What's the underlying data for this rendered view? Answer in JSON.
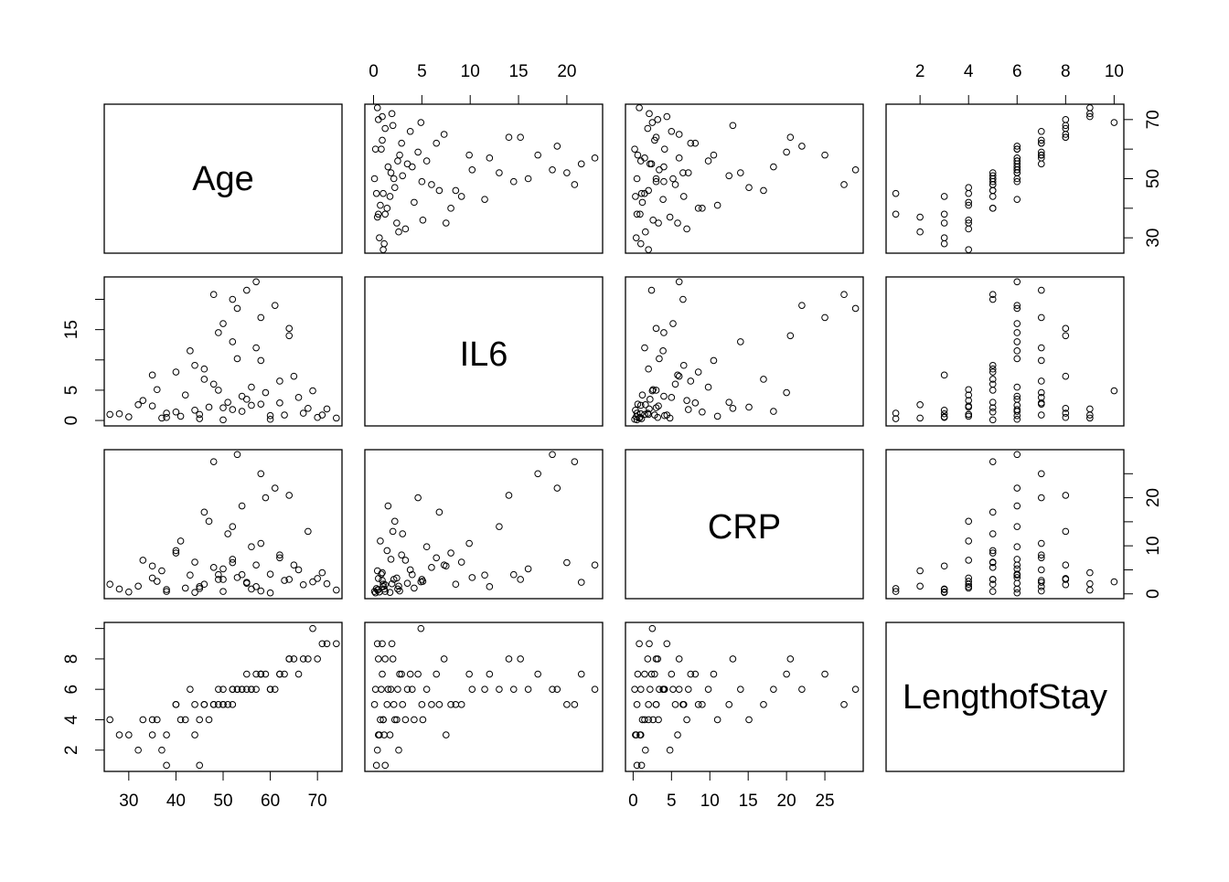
{
  "chart_data": {
    "type": "scatter",
    "subtype": "scatterplot-matrix",
    "variables": [
      "Age",
      "IL6",
      "CRP",
      "LengthofStay"
    ],
    "axes": {
      "Age": {
        "range": [
          24.8,
          75.2
        ],
        "ticks": [
          30,
          40,
          50,
          60,
          70
        ],
        "tick_labels": {
          "bottom": [
            "30",
            "40",
            "50",
            "60",
            "70"
          ],
          "right": [
            "30",
            "",
            "50",
            "",
            "70"
          ]
        }
      },
      "IL6": {
        "range": [
          -0.9,
          23.7
        ],
        "ticks": [
          0,
          5,
          10,
          15,
          20
        ],
        "tick_labels": {
          "top": [
            "0",
            "5",
            "10",
            "15",
            "20"
          ],
          "left": [
            "0",
            "5",
            "",
            "15",
            ""
          ]
        }
      },
      "CRP": {
        "range": [
          -1.0,
          30.0
        ],
        "ticks": [
          0,
          5,
          10,
          15,
          20,
          25
        ],
        "tick_labels": {
          "bottom": [
            "0",
            "5",
            "10",
            "15",
            "20",
            "25"
          ],
          "right": [
            "0",
            "",
            "10",
            "",
            "20",
            ""
          ]
        }
      },
      "LengthofStay": {
        "range": [
          0.6,
          10.4
        ],
        "ticks": [
          2,
          4,
          6,
          8,
          10
        ],
        "tick_labels": {
          "top": [
            "2",
            "4",
            "6",
            "8",
            "10"
          ],
          "left": [
            "2",
            "4",
            "6",
            "8",
            ""
          ]
        }
      }
    },
    "marker": "open-circle",
    "point_color": "#000000",
    "grid": false,
    "legend": "none",
    "records": [
      [
        50,
        2.1,
        3.0,
        5
      ],
      [
        45,
        1.0,
        1.5,
        4
      ],
      [
        55,
        3.5,
        2.2,
        6
      ],
      [
        60,
        0.8,
        4.1,
        6
      ],
      [
        38,
        0.5,
        0.9,
        3
      ],
      [
        42,
        4.2,
        1.2,
        4
      ],
      [
        48,
        6.0,
        5.5,
        5
      ],
      [
        52,
        1.8,
        7.2,
        6
      ],
      [
        58,
        2.7,
        0.6,
        7
      ],
      [
        63,
        0.9,
        2.8,
        7
      ],
      [
        67,
        1.2,
        1.9,
        8
      ],
      [
        35,
        2.4,
        3.3,
        4
      ],
      [
        30,
        0.6,
        0.4,
        3
      ],
      [
        28,
        1.1,
        1.0,
        3
      ],
      [
        46,
        8.5,
        2.0,
        5
      ],
      [
        53,
        10.2,
        3.4,
        6
      ],
      [
        57,
        12.0,
        1.5,
        7
      ],
      [
        49,
        14.5,
        4.0,
        6
      ],
      [
        44,
        9.1,
        6.6,
        5
      ],
      [
        56,
        5.5,
        9.8,
        6
      ],
      [
        51,
        3.0,
        12.5,
        5
      ],
      [
        47,
        2.2,
        15.1,
        4
      ],
      [
        54,
        1.5,
        18.3,
        6
      ],
      [
        59,
        4.6,
        20.0,
        7
      ],
      [
        41,
        0.7,
        11.0,
        4
      ],
      [
        62,
        2.9,
        8.1,
        7
      ],
      [
        65,
        7.3,
        6.0,
        8
      ],
      [
        70,
        0.5,
        3.2,
        8
      ],
      [
        72,
        1.9,
        2.1,
        9
      ],
      [
        74,
        0.4,
        0.8,
        9
      ],
      [
        66,
        3.8,
        5.0,
        7
      ],
      [
        36,
        5.1,
        2.6,
        4
      ],
      [
        33,
        3.3,
        7.0,
        4
      ],
      [
        40,
        1.4,
        9.0,
        5
      ],
      [
        43,
        11.5,
        3.9,
        6
      ],
      [
        50,
        16.0,
        5.2,
        6
      ],
      [
        55,
        21.5,
        2.4,
        7
      ],
      [
        57,
        22.9,
        6.0,
        6
      ],
      [
        53,
        18.5,
        29.0,
        6
      ],
      [
        48,
        20.8,
        27.5,
        5
      ],
      [
        61,
        19.0,
        22.0,
        6
      ],
      [
        45,
        0.3,
        1.1,
        1
      ],
      [
        38,
        1.2,
        0.5,
        1
      ],
      [
        69,
        4.9,
        2.5,
        10
      ],
      [
        64,
        15.2,
        3.0,
        8
      ],
      [
        52,
        13.0,
        14.0,
        6
      ],
      [
        46,
        6.8,
        17.0,
        5
      ],
      [
        58,
        9.9,
        10.5,
        7
      ],
      [
        68,
        2.0,
        13.0,
        8
      ],
      [
        71,
        0.9,
        4.4,
        9
      ],
      [
        26,
        1.0,
        2.0,
        4
      ],
      [
        32,
        2.6,
        1.6,
        2
      ],
      [
        37,
        0.4,
        4.8,
        2
      ],
      [
        44,
        1.7,
        0.3,
        3
      ],
      [
        60,
        0.2,
        0.2,
        6
      ],
      [
        50,
        0.1,
        0.5,
        5
      ],
      [
        54,
        4.0,
        4.0,
        6
      ],
      [
        49,
        5.0,
        3.0,
        5
      ],
      [
        56,
        2.5,
        1.0,
        6
      ],
      [
        62,
        6.5,
        7.5,
        7
      ],
      [
        40,
        8.0,
        8.5,
        5
      ],
      [
        52,
        20.0,
        6.5,
        5
      ],
      [
        58,
        17.0,
        25.0,
        7
      ],
      [
        64,
        14.0,
        20.5,
        8
      ],
      [
        35,
        7.5,
        5.8,
        3
      ]
    ]
  }
}
